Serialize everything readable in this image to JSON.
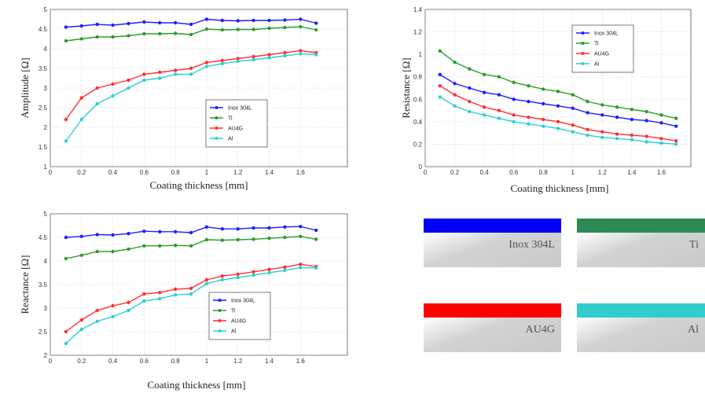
{
  "chart_data": [
    {
      "type": "line",
      "ylabel": "Amplitude [Ω]",
      "xlabel": "Coating thickness [mm]",
      "xlim": [
        0,
        1.9
      ],
      "ylim": [
        1,
        5
      ],
      "xticks": [
        "0",
        "0.2",
        "0.4",
        "0.6",
        "0.8",
        "1",
        "1.2",
        "1.4",
        "1.6"
      ],
      "yticks": [
        "1",
        "1.5",
        "2",
        "2.5",
        "3",
        "3.5",
        "4",
        "4.5",
        "5"
      ],
      "grid": true,
      "legend_position": "center-right",
      "x": [
        0.1,
        0.2,
        0.3,
        0.4,
        0.5,
        0.6,
        0.7,
        0.8,
        0.9,
        1.0,
        1.1,
        1.2,
        1.3,
        1.4,
        1.5,
        1.6,
        1.7
      ],
      "series": [
        {
          "name": "Inox 304L",
          "color": "#1f1fff",
          "values": [
            4.55,
            4.58,
            4.62,
            4.6,
            4.64,
            4.68,
            4.66,
            4.66,
            4.62,
            4.75,
            4.72,
            4.71,
            4.72,
            4.72,
            4.73,
            4.75,
            4.65
          ]
        },
        {
          "name": "Ti",
          "color": "#2a9d2a",
          "values": [
            4.2,
            4.25,
            4.3,
            4.3,
            4.33,
            4.38,
            4.38,
            4.39,
            4.36,
            4.5,
            4.48,
            4.49,
            4.49,
            4.52,
            4.54,
            4.56,
            4.48
          ]
        },
        {
          "name": "AU4G",
          "color": "#ff3030",
          "values": [
            2.2,
            2.75,
            3.0,
            3.1,
            3.2,
            3.35,
            3.4,
            3.45,
            3.5,
            3.65,
            3.7,
            3.75,
            3.8,
            3.85,
            3.9,
            3.95,
            3.9
          ]
        },
        {
          "name": "Al",
          "color": "#2ecfcf",
          "values": [
            1.65,
            2.2,
            2.6,
            2.8,
            3.0,
            3.2,
            3.25,
            3.35,
            3.35,
            3.55,
            3.62,
            3.68,
            3.72,
            3.77,
            3.82,
            3.87,
            3.85
          ]
        }
      ]
    },
    {
      "type": "line",
      "ylabel": "Resistance [Ω]",
      "xlabel": "Coating thickness [mm]",
      "xlim": [
        0,
        1.8
      ],
      "ylim": [
        0,
        1.4
      ],
      "xticks": [
        "0",
        "0.2",
        "0.4",
        "0.6",
        "0.8",
        "1",
        "1.2",
        "1.4",
        "1.6"
      ],
      "yticks": [
        "0",
        "0.2",
        "0.4",
        "0.6",
        "0.8",
        "1",
        "1.2",
        "1.4"
      ],
      "grid": true,
      "legend_position": "top-center",
      "x": [
        0.1,
        0.2,
        0.3,
        0.4,
        0.5,
        0.6,
        0.7,
        0.8,
        0.9,
        1.0,
        1.1,
        1.2,
        1.3,
        1.4,
        1.5,
        1.6,
        1.7
      ],
      "series": [
        {
          "name": "Inox 304L",
          "color": "#1f1fff",
          "values": [
            0.82,
            0.74,
            0.7,
            0.66,
            0.64,
            0.6,
            0.58,
            0.56,
            0.54,
            0.52,
            0.48,
            0.46,
            0.44,
            0.42,
            0.41,
            0.39,
            0.36
          ]
        },
        {
          "name": "Ti",
          "color": "#2a9d2a",
          "values": [
            1.03,
            0.93,
            0.87,
            0.82,
            0.8,
            0.75,
            0.72,
            0.69,
            0.67,
            0.64,
            0.58,
            0.55,
            0.53,
            0.51,
            0.49,
            0.46,
            0.43
          ]
        },
        {
          "name": "AU4G",
          "color": "#ff3030",
          "values": [
            0.72,
            0.64,
            0.58,
            0.53,
            0.5,
            0.46,
            0.44,
            0.42,
            0.4,
            0.37,
            0.33,
            0.31,
            0.29,
            0.28,
            0.27,
            0.25,
            0.23
          ]
        },
        {
          "name": "Al",
          "color": "#2ecfcf",
          "values": [
            0.62,
            0.54,
            0.49,
            0.46,
            0.43,
            0.4,
            0.38,
            0.36,
            0.34,
            0.31,
            0.28,
            0.26,
            0.25,
            0.24,
            0.22,
            0.21,
            0.2
          ]
        }
      ]
    },
    {
      "type": "line",
      "ylabel": "Reactance [Ω]",
      "xlabel": "Coating thickness [mm]",
      "xlim": [
        0,
        1.9
      ],
      "ylim": [
        2,
        5
      ],
      "xticks": [
        "0",
        "0.2",
        "0.4",
        "0.6",
        "0.8",
        "1",
        "1.2",
        "1.4",
        "1.6"
      ],
      "yticks": [
        "2",
        "2.5",
        "3",
        "3.5",
        "4",
        "4.5",
        "5"
      ],
      "grid": true,
      "legend_position": "center-right",
      "x": [
        0.1,
        0.2,
        0.3,
        0.4,
        0.5,
        0.6,
        0.7,
        0.8,
        0.9,
        1.0,
        1.1,
        1.2,
        1.3,
        1.4,
        1.5,
        1.6,
        1.7
      ],
      "series": [
        {
          "name": "Inox 304L",
          "color": "#1f1fff",
          "values": [
            4.5,
            4.52,
            4.56,
            4.55,
            4.58,
            4.63,
            4.62,
            4.62,
            4.6,
            4.72,
            4.68,
            4.68,
            4.7,
            4.7,
            4.72,
            4.73,
            4.65
          ]
        },
        {
          "name": "Ti",
          "color": "#2a9d2a",
          "values": [
            4.05,
            4.12,
            4.2,
            4.2,
            4.25,
            4.32,
            4.32,
            4.33,
            4.32,
            4.45,
            4.44,
            4.45,
            4.46,
            4.48,
            4.5,
            4.52,
            4.46
          ]
        },
        {
          "name": "AU4G",
          "color": "#ff3030",
          "values": [
            2.5,
            2.75,
            2.95,
            3.05,
            3.12,
            3.3,
            3.33,
            3.4,
            3.42,
            3.6,
            3.68,
            3.72,
            3.77,
            3.82,
            3.87,
            3.93,
            3.88
          ]
        },
        {
          "name": "Al",
          "color": "#2ecfcf",
          "values": [
            2.25,
            2.55,
            2.72,
            2.82,
            2.95,
            3.15,
            3.2,
            3.28,
            3.3,
            3.52,
            3.6,
            3.65,
            3.7,
            3.75,
            3.8,
            3.86,
            3.85
          ]
        }
      ]
    }
  ],
  "swatches": [
    {
      "label": "Inox 304L",
      "color": "#0000ff"
    },
    {
      "label": "Ti",
      "color": "#2e8b57"
    },
    {
      "label": "AU4G",
      "color": "#ff0000"
    },
    {
      "label": "Al",
      "color": "#33cccc"
    }
  ]
}
